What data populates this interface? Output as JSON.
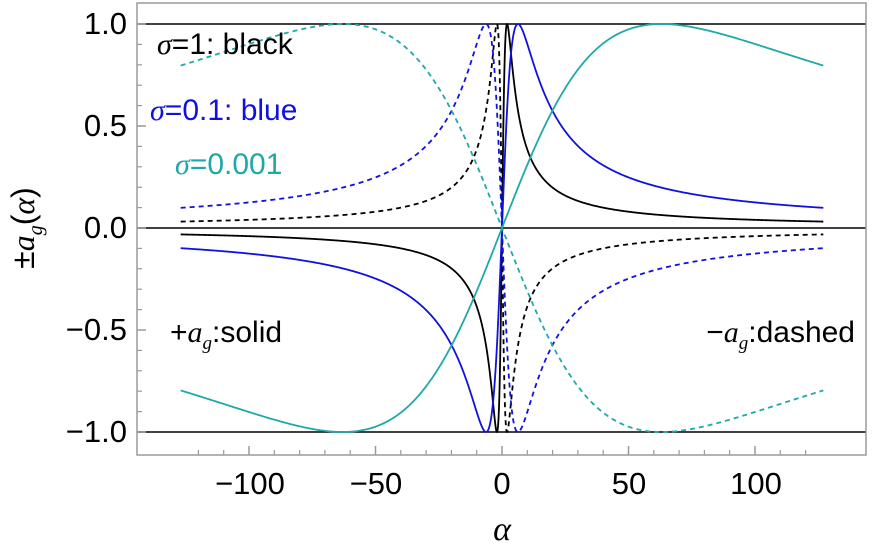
{
  "chart_data": {
    "type": "line",
    "xlabel": "α",
    "ylabel": "±a_g(α)",
    "xlim": [
      -127,
      127
    ],
    "ylim": [
      -1.08,
      1.08
    ],
    "x_ticks": [
      -100,
      -50,
      0,
      50,
      100
    ],
    "x_tick_labels": [
      "−100",
      "−50",
      "0",
      "50",
      "100"
    ],
    "y_ticks": [
      1.0,
      0.5,
      0.0,
      -0.5,
      -1.0
    ],
    "y_tick_labels": [
      "1.0",
      "0.5",
      "0.0",
      "−0.5",
      "−1.0"
    ],
    "grid": false,
    "function": "a_g(α) = 2kα / (k² + α²), peak ±1 at α = ±k",
    "reference_lines": [
      {
        "y": 1.0,
        "color": "#000000"
      },
      {
        "y": 0.0,
        "color": "#000000"
      },
      {
        "y": -1.0,
        "color": "#000000"
      }
    ],
    "series": [
      {
        "sigma": "1",
        "color": "#000000",
        "peak_alpha": 2,
        "style": "solid",
        "sign": "+a_g"
      },
      {
        "sigma": "1",
        "color": "#000000",
        "peak_alpha": 2,
        "style": "dashed",
        "sign": "-a_g"
      },
      {
        "sigma": "0.1",
        "color": "#1010e0",
        "peak_alpha": 6.3,
        "style": "solid",
        "sign": "+a_g"
      },
      {
        "sigma": "0.1",
        "color": "#1010e0",
        "peak_alpha": 6.3,
        "style": "dashed",
        "sign": "-a_g"
      },
      {
        "sigma": "0.001",
        "color": "#20a8a8",
        "peak_alpha": 63,
        "style": "solid",
        "sign": "+a_g"
      },
      {
        "sigma": "0.001",
        "color": "#20a8a8",
        "peak_alpha": 63,
        "style": "dashed",
        "sign": "-a_g"
      }
    ],
    "annotations": {
      "black": {
        "sigma": "σ",
        "text": "=1: black"
      },
      "blue": {
        "sigma": "σ",
        "text": "=0.1: blue"
      },
      "teal": {
        "sigma": "σ",
        "text": "=0.001"
      },
      "solid": {
        "prefix": "+",
        "a": "a",
        "sub": "g",
        "text": ":solid"
      },
      "dashed": {
        "prefix": "−",
        "a": "a",
        "sub": "g",
        "text": ":dashed"
      }
    }
  }
}
